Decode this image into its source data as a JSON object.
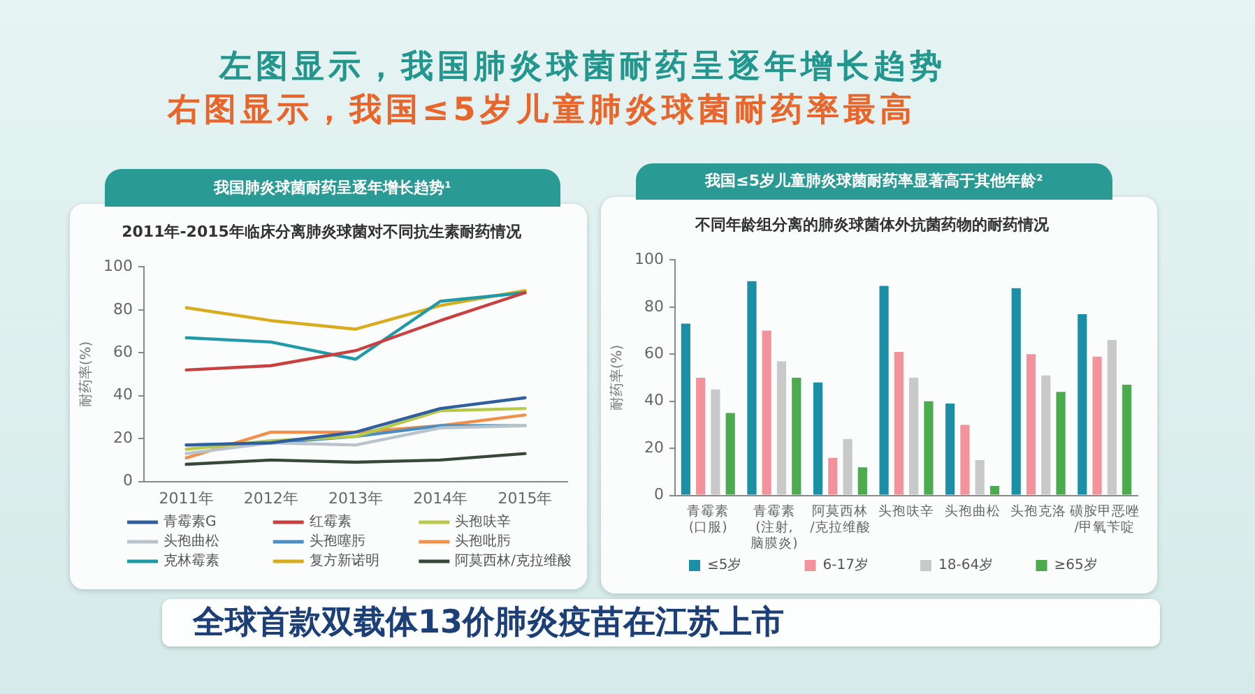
{
  "chart_data": [
    {
      "type": "line",
      "title": "我国肺炎球菌耐药呈逐年增长趋势¹",
      "subtitle": "2011年-2015年临床分离肺炎球菌对不同抗生素耐药情况",
      "ylabel": "耐药率(%)",
      "categories": [
        "2011年",
        "2012年",
        "2013年",
        "2014年",
        "2015年"
      ],
      "series": [
        {
          "name": "青霉素G",
          "color": "#2f5f9e",
          "values": [
            17,
            18,
            23,
            34,
            39
          ]
        },
        {
          "name": "红霉素",
          "color": "#c94040",
          "values": [
            52,
            54,
            61,
            75,
            88
          ]
        },
        {
          "name": "头孢呋辛",
          "color": "#b8c94a",
          "values": [
            15,
            19,
            21,
            33,
            34
          ]
        },
        {
          "name": "头孢曲松",
          "color": "#b9c3cc",
          "values": [
            13,
            18,
            17,
            25,
            26
          ]
        },
        {
          "name": "头孢噻肟",
          "color": "#4a8fc4",
          "values": [
            17,
            18,
            21,
            26,
            26
          ]
        },
        {
          "name": "头孢吡肟",
          "color": "#f0904a",
          "values": [
            11,
            23,
            23,
            26,
            31
          ]
        },
        {
          "name": "克林霉素",
          "color": "#1f9aa6",
          "values": [
            67,
            65,
            57,
            84,
            88
          ]
        },
        {
          "name": "复方新诺明",
          "color": "#d9ac1e",
          "values": [
            81,
            75,
            71,
            82,
            89
          ]
        },
        {
          "name": "阿莫西林/克拉维酸",
          "color": "#37473a",
          "values": [
            8,
            10,
            9,
            10,
            13
          ]
        }
      ],
      "ylim": [
        0,
        100
      ],
      "yticks": [
        0,
        20,
        40,
        60,
        80,
        100
      ],
      "grid": false,
      "legend": "bottom",
      "marker": "none",
      "line_style": "solid",
      "annotations": [
        "左图显示，我国肺炎球菌耐药呈逐年增长趋势"
      ]
    },
    {
      "type": "bar",
      "title": "我国≤5岁儿童肺炎球菌耐药率显著高于其他年龄²",
      "subtitle": "不同年龄组分离的肺炎球菌体外抗菌药物的耐药情况",
      "ylabel": "耐药率(%)",
      "categories": [
        "青霉素(口服)",
        "青霉素(注射,脑膜炎)",
        "阿莫西林/克拉维酸",
        "头孢呋辛",
        "头孢曲松",
        "头孢克洛",
        "磺胺甲恶唑/甲氧苄啶"
      ],
      "series": [
        {
          "name": "≤5岁",
          "color": "#1b8fa6",
          "values": [
            73,
            91,
            48,
            89,
            39,
            88,
            77
          ]
        },
        {
          "name": "6-17岁",
          "color": "#f2939c",
          "values": [
            50,
            70,
            16,
            61,
            30,
            60,
            59
          ]
        },
        {
          "name": "18-64岁",
          "color": "#c9c9c9",
          "values": [
            45,
            57,
            24,
            50,
            15,
            51,
            66
          ]
        },
        {
          "name": "≥65岁",
          "color": "#4caa4f",
          "values": [
            35,
            50,
            12,
            40,
            4,
            44,
            47
          ]
        }
      ],
      "ylim": [
        0,
        100
      ],
      "yticks": [
        0,
        20,
        40,
        60,
        80,
        100
      ],
      "grid": false,
      "legend": "bottom",
      "annotations": [
        "右图显示，我国≤5岁儿童肺炎球菌耐药率最高",
        "全球首款双载体13价肺炎疫苗在江苏上市"
      ]
    }
  ]
}
